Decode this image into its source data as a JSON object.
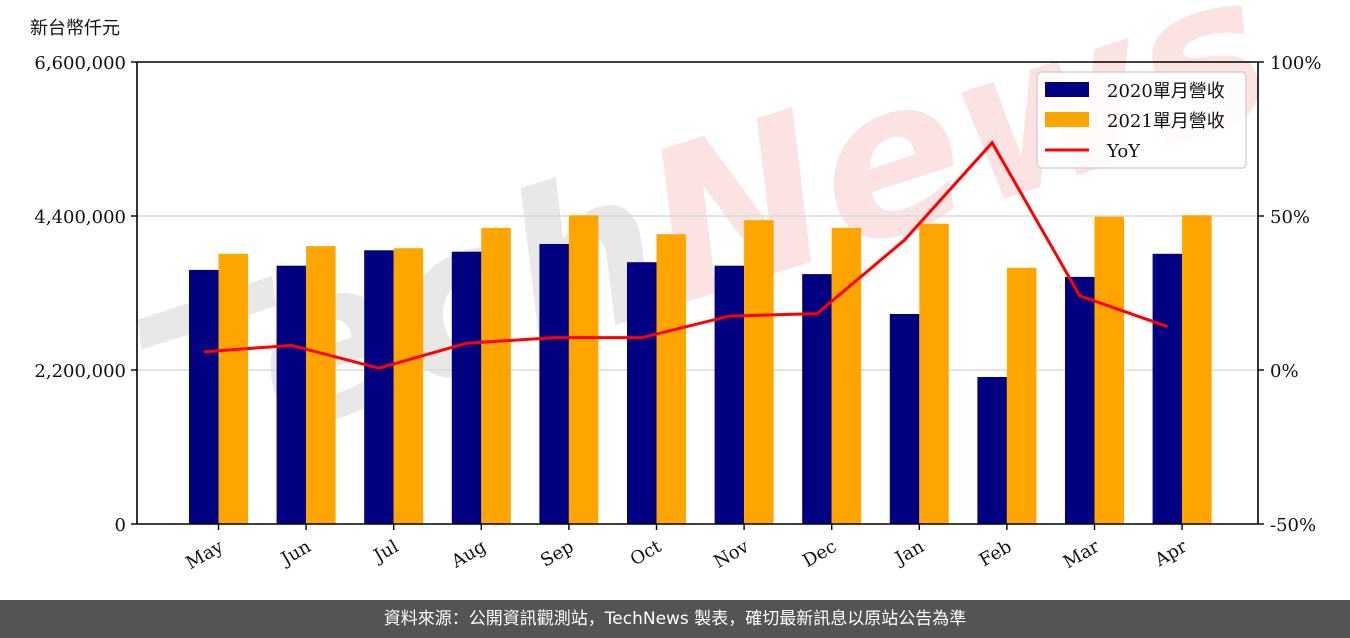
{
  "header": {
    "unit_label": "新台幣仟元"
  },
  "footer": {
    "text": "資料來源：公開資訊觀測站，TechNews 製表，確切最新訊息以原站公告為準"
  },
  "watermark": {
    "text": "TechNews"
  },
  "colors": {
    "series_2020": "#000080",
    "series_2021": "#FFA500",
    "yoy_line": "#FF0000",
    "grid": "#d9d9d9",
    "footer_bg": "#545454"
  },
  "chart_data": {
    "type": "bar",
    "title": "",
    "xlabel": "",
    "ylabel": "新台幣仟元",
    "y2label": "",
    "categories": [
      "May",
      "Jun",
      "Jul",
      "Aug",
      "Sep",
      "Oct",
      "Nov",
      "Dec",
      "Jan",
      "Feb",
      "Mar",
      "Apr"
    ],
    "series": [
      {
        "name": "2020單月營收",
        "type": "bar",
        "axis": "left",
        "values": [
          3630000,
          3690000,
          3910000,
          3890000,
          4000000,
          3740000,
          3690000,
          3570000,
          3000000,
          2100000,
          3530000,
          3860000
        ]
      },
      {
        "name": "2021單月營收",
        "type": "bar",
        "axis": "left",
        "values": [
          3860000,
          3970000,
          3940000,
          4230000,
          4410000,
          4140000,
          4340000,
          4230000,
          4290000,
          3660000,
          4390000,
          4410000
        ]
      },
      {
        "name": "YoY",
        "type": "line",
        "axis": "right",
        "unit": "%",
        "values": [
          5.9,
          8.0,
          0.6,
          8.7,
          10.5,
          10.5,
          17.5,
          18.3,
          42.2,
          73.8,
          24.1,
          14.1
        ]
      }
    ],
    "ylim": [
      0,
      6600000
    ],
    "y2lim": [
      -50,
      100
    ],
    "yticks": [
      0,
      2200000,
      4400000,
      6600000
    ],
    "ytick_labels": [
      "0",
      "2,200,000",
      "4,400,000",
      "6,600,000"
    ],
    "y2ticks": [
      -50,
      0,
      50,
      100
    ],
    "y2tick_labels": [
      "-50%",
      "0%",
      "50%",
      "100%"
    ],
    "grid": "horizontal",
    "legend_position": "upper right",
    "legend": [
      "2020單月營收",
      "2021單月營收",
      "YoY"
    ]
  }
}
